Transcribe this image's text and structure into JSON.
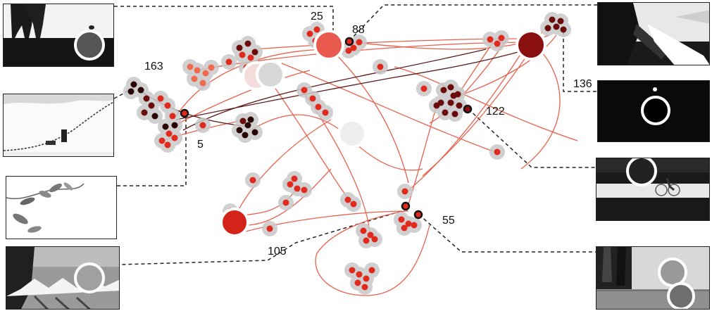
{
  "labels": {
    "l163": "163",
    "l25": "25",
    "l88": "88",
    "l136": "136",
    "l122": "122",
    "l5": "5",
    "l55": "55",
    "l105": "105"
  },
  "colors": {
    "link": "#e8614f",
    "dark_link": "#5a1a1a",
    "halo": "#c8c8c8",
    "node_red": "#e02a1e",
    "node_dark": "#5a0a0a",
    "node_black": "#2a0505",
    "node_salmon": "#f06a50",
    "leader": "#222222"
  },
  "thumbnails": [
    {
      "id": "thumb-silhouette-trees",
      "marker_color": "#555555"
    },
    {
      "id": "thumb-snow-hill",
      "marker_color": "none"
    },
    {
      "id": "thumb-leaves",
      "marker_color": "none"
    },
    {
      "id": "thumb-gray-fabric",
      "marker_color": "#a0a0a0"
    },
    {
      "id": "thumb-shadow-figures",
      "marker_color": "none"
    },
    {
      "id": "thumb-dark-sky",
      "marker_color": "#000000"
    },
    {
      "id": "thumb-cyclist",
      "marker_color": "#222222"
    },
    {
      "id": "thumb-pillars",
      "marker_color": "#9a9a9a"
    }
  ]
}
